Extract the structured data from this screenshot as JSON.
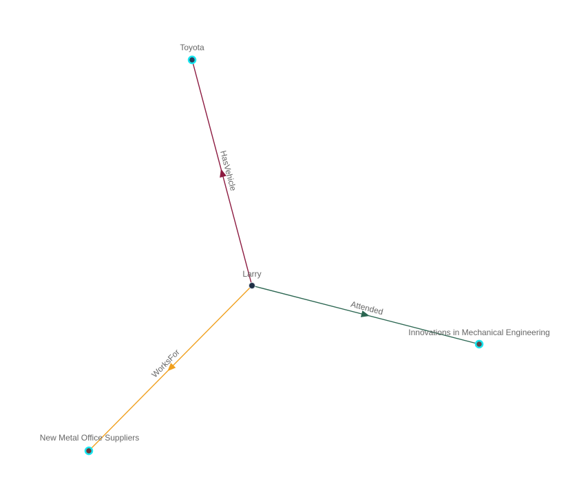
{
  "graph": {
    "nodes": [
      {
        "id": "larry",
        "label": "Larry",
        "fill": "#1e2f45",
        "ring": "#cfd6dd"
      },
      {
        "id": "toyota",
        "label": "Toyota",
        "fill": "#2a3d5a",
        "ring": "#19e6f0"
      },
      {
        "id": "innov",
        "label": "Innovations in Mechanical Engineering",
        "fill": "#5a4a4a",
        "ring": "#19e6f0"
      },
      {
        "id": "newmetal",
        "label": "New Metal Office Suppliers",
        "fill": "#6a3a3a",
        "ring": "#19e6f0"
      }
    ],
    "edges": [
      {
        "from": "larry",
        "to": "toyota",
        "label": "HasVehicle",
        "color": "#8c1a40"
      },
      {
        "from": "larry",
        "to": "innov",
        "label": "Attended",
        "color": "#2b6651"
      },
      {
        "from": "larry",
        "to": "newmetal",
        "label": "WorksFor",
        "color": "#f0a01e"
      }
    ]
  }
}
